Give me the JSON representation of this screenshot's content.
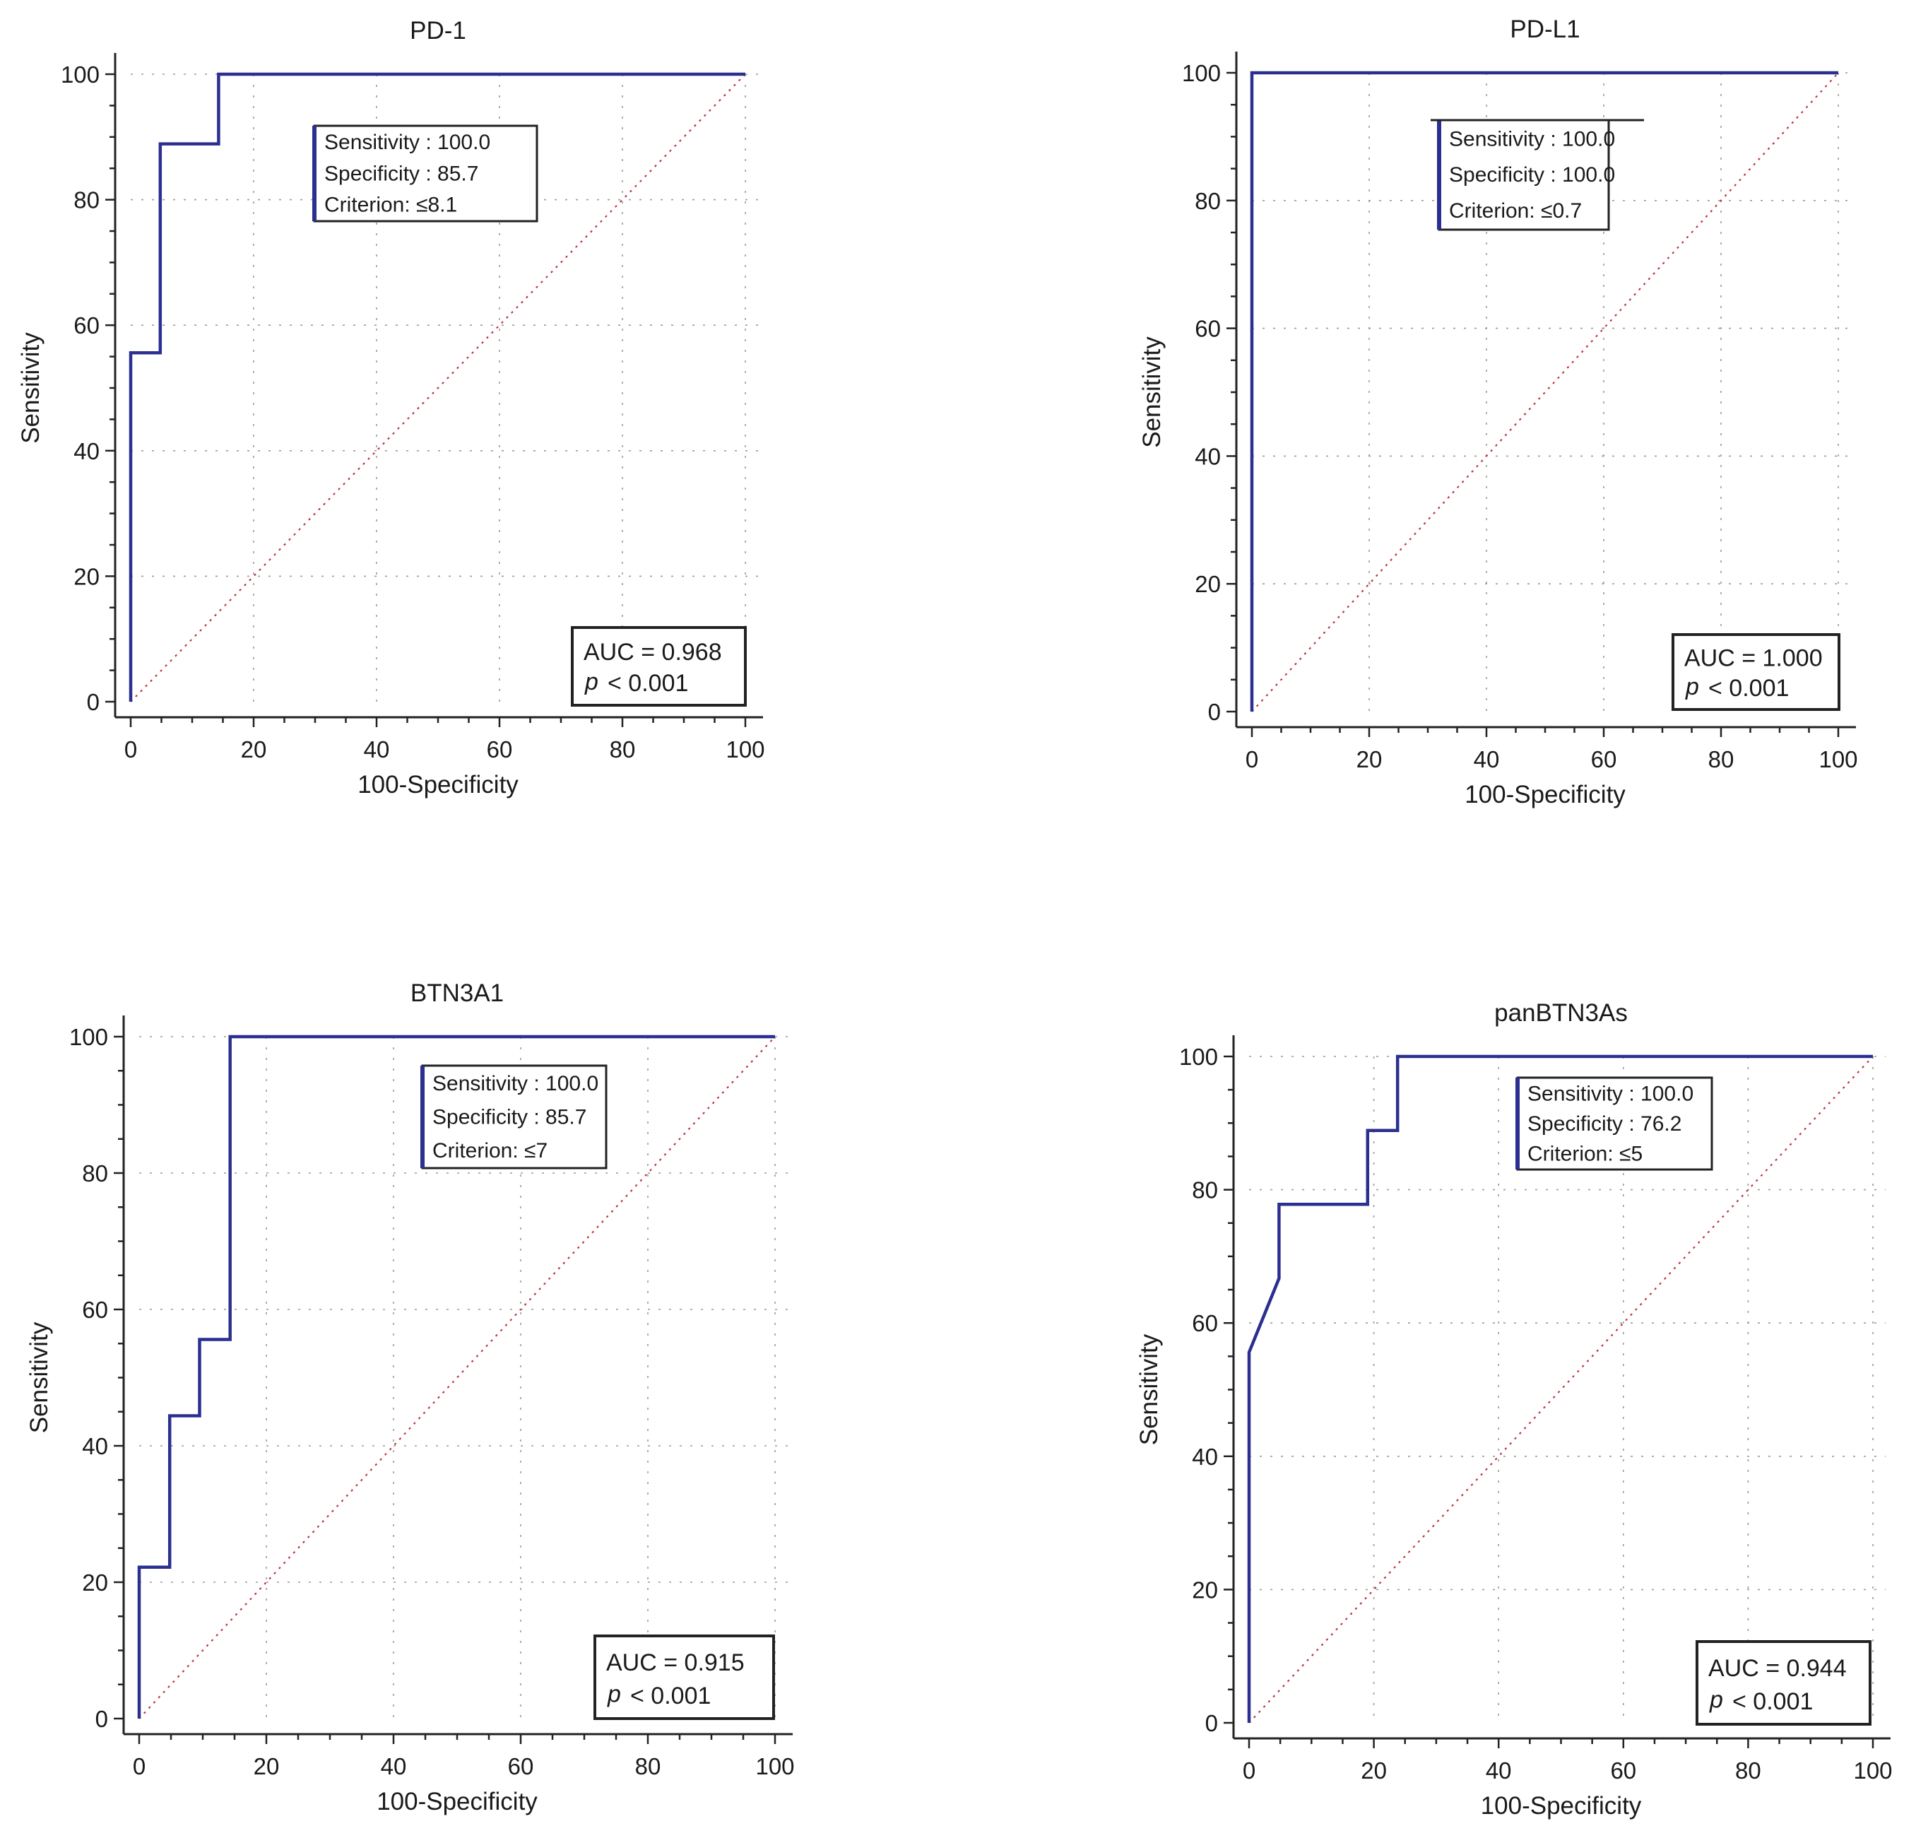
{
  "chart_data": [
    {
      "type": "line",
      "title": "PD-1",
      "xlabel": "100-Specificity",
      "ylabel": "Sensitivity",
      "xlim": [
        0,
        100
      ],
      "ylim": [
        0,
        100
      ],
      "x_ticks": [
        "0",
        "20",
        "40",
        "60",
        "80",
        "100"
      ],
      "y_ticks": [
        "0",
        "20",
        "40",
        "60",
        "80",
        "100"
      ],
      "grid": true,
      "series": [
        {
          "x": [
            0,
            0,
            4.8,
            4.8,
            14.3,
            14.3,
            100
          ],
          "y": [
            0,
            55.6,
            55.6,
            88.9,
            88.9,
            100,
            100
          ]
        }
      ],
      "diagonal": true,
      "criterion_box": {
        "lines": [
          "Sensitivity : 100.0",
          "Specificity : 85.7",
          "Criterion: ≤8.1"
        ]
      },
      "auc_box": {
        "auc": "AUC = 0.968",
        "p_symbol": "p",
        "p_value": "< 0.001"
      }
    },
    {
      "type": "line",
      "title": "PD-L1",
      "xlabel": "100-Specificity",
      "ylabel": "Sensitivity",
      "xlim": [
        0,
        100
      ],
      "ylim": [
        0,
        100
      ],
      "x_ticks": [
        "0",
        "20",
        "40",
        "60",
        "80",
        "100"
      ],
      "y_ticks": [
        "0",
        "20",
        "40",
        "60",
        "80",
        "100"
      ],
      "grid": true,
      "series": [
        {
          "x": [
            0,
            0,
            100
          ],
          "y": [
            0,
            100,
            100
          ]
        }
      ],
      "diagonal": true,
      "criterion_box": {
        "lines": [
          "Sensitivity : 100.0",
          "Specificity : 100.0",
          "Criterion: ≤0.7"
        ]
      },
      "auc_box": {
        "auc": "AUC = 1.000",
        "p_symbol": "p",
        "p_value": "< 0.001"
      }
    },
    {
      "type": "line",
      "title": "BTN3A1",
      "xlabel": "100-Specificity",
      "ylabel": "Sensitivity",
      "xlim": [
        0,
        100
      ],
      "ylim": [
        0,
        100
      ],
      "x_ticks": [
        "0",
        "20",
        "40",
        "60",
        "80",
        "100"
      ],
      "y_ticks": [
        "0",
        "20",
        "40",
        "60",
        "80",
        "100"
      ],
      "grid": true,
      "series": [
        {
          "x": [
            0,
            0,
            4.8,
            4.8,
            9.5,
            9.5,
            14.3,
            14.3,
            100
          ],
          "y": [
            0,
            22.2,
            22.2,
            44.4,
            44.4,
            55.6,
            55.6,
            100,
            100
          ]
        }
      ],
      "diagonal": true,
      "criterion_box": {
        "lines": [
          "Sensitivity : 100.0",
          "Specificity : 85.7",
          "Criterion: ≤7"
        ]
      },
      "auc_box": {
        "auc": "AUC = 0.915",
        "p_symbol": "p",
        "p_value": "< 0.001"
      }
    },
    {
      "type": "line",
      "title": "panBTN3As",
      "xlabel": "100-Specificity",
      "ylabel": "Sensitivity",
      "xlim": [
        0,
        100
      ],
      "ylim": [
        0,
        100
      ],
      "x_ticks": [
        "0",
        "20",
        "40",
        "60",
        "80",
        "100"
      ],
      "y_ticks": [
        "0",
        "20",
        "40",
        "60",
        "80",
        "100"
      ],
      "grid": true,
      "series": [
        {
          "x": [
            0,
            0,
            4.8,
            4.8,
            19.0,
            19.0,
            23.8,
            23.8,
            100
          ],
          "y": [
            0,
            55.6,
            66.7,
            77.8,
            77.8,
            88.9,
            88.9,
            100,
            100
          ]
        }
      ],
      "diagonal": true,
      "criterion_box": {
        "lines": [
          "Sensitivity : 100.0",
          "Specificity : 76.2",
          "Criterion: ≤5"
        ]
      },
      "auc_box": {
        "auc": "AUC = 0.944",
        "p_symbol": "p",
        "p_value": "< 0.001"
      }
    }
  ],
  "colors": {
    "roc_line": "#2b2f8f",
    "diagonal": "#c0303a",
    "axis": "#222222",
    "grid": "#9a9a9a",
    "box_border": "#222222",
    "criterion_box_left": "#2b2f8f"
  }
}
